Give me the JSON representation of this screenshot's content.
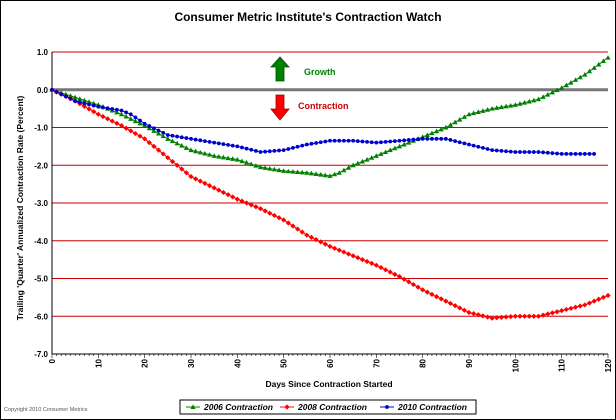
{
  "chart_data": {
    "type": "line",
    "title": "Consumer Metric Institute's Contraction Watch",
    "xlabel": "Days Since Contraction Started",
    "ylabel": "Trailing 'Quarter' Annualized Contraction Rate (Percent)",
    "xlim": [
      0,
      120
    ],
    "ylim": [
      -7.0,
      1.0
    ],
    "x_ticks": [
      "0",
      "10",
      "20",
      "30",
      "40",
      "50",
      "60",
      "70",
      "80",
      "90",
      "100",
      "110",
      "120"
    ],
    "y_ticks": [
      "1.0",
      "0.0",
      "-1.0",
      "-2.0",
      "-3.0",
      "-4.0",
      "-5.0",
      "-6.0",
      "-7.0"
    ],
    "grid": "horizontal",
    "legend_position": "bottom",
    "annotations": {
      "growth": {
        "text": "Growth",
        "color": "#008000"
      },
      "contraction": {
        "text": "Contraction",
        "color": "#cc0000"
      }
    },
    "copyright": "Copyright 2010 Consumer Metrics",
    "series": [
      {
        "name": "2006 Contraction",
        "color": "#008000",
        "marker": "triangle",
        "x": [
          0,
          5,
          10,
          15,
          20,
          25,
          30,
          35,
          40,
          45,
          50,
          55,
          60,
          62,
          65,
          70,
          75,
          80,
          85,
          90,
          95,
          100,
          105,
          110,
          115,
          120
        ],
        "y": [
          0.0,
          -0.2,
          -0.4,
          -0.65,
          -0.95,
          -1.3,
          -1.6,
          -1.75,
          -1.85,
          -2.05,
          -2.15,
          -2.2,
          -2.28,
          -2.2,
          -2.0,
          -1.75,
          -1.5,
          -1.25,
          -1.0,
          -0.65,
          -0.5,
          -0.4,
          -0.25,
          0.05,
          0.4,
          0.85
        ]
      },
      {
        "name": "2008 Contraction",
        "color": "#ff0000",
        "marker": "diamond",
        "x": [
          0,
          5,
          10,
          15,
          20,
          25,
          30,
          35,
          40,
          45,
          50,
          55,
          60,
          65,
          70,
          75,
          80,
          85,
          90,
          95,
          100,
          105,
          110,
          115,
          120
        ],
        "y": [
          0.0,
          -0.3,
          -0.65,
          -0.95,
          -1.3,
          -1.8,
          -2.3,
          -2.6,
          -2.9,
          -3.15,
          -3.45,
          -3.85,
          -4.15,
          -4.4,
          -4.65,
          -4.95,
          -5.3,
          -5.6,
          -5.9,
          -6.05,
          -6.0,
          -6.0,
          -5.85,
          -5.7,
          -5.45
        ]
      },
      {
        "name": "2010 Contraction",
        "color": "#0000cc",
        "marker": "circle",
        "x": [
          0,
          5,
          10,
          15,
          17,
          20,
          25,
          30,
          35,
          40,
          45,
          50,
          55,
          60,
          65,
          70,
          75,
          80,
          85,
          90,
          95,
          100,
          105,
          110,
          117
        ],
        "y": [
          0.0,
          -0.3,
          -0.45,
          -0.55,
          -0.65,
          -0.9,
          -1.2,
          -1.3,
          -1.4,
          -1.5,
          -1.65,
          -1.6,
          -1.45,
          -1.35,
          -1.35,
          -1.4,
          -1.35,
          -1.3,
          -1.3,
          -1.45,
          -1.6,
          -1.65,
          -1.65,
          -1.7,
          -1.7
        ]
      }
    ]
  }
}
